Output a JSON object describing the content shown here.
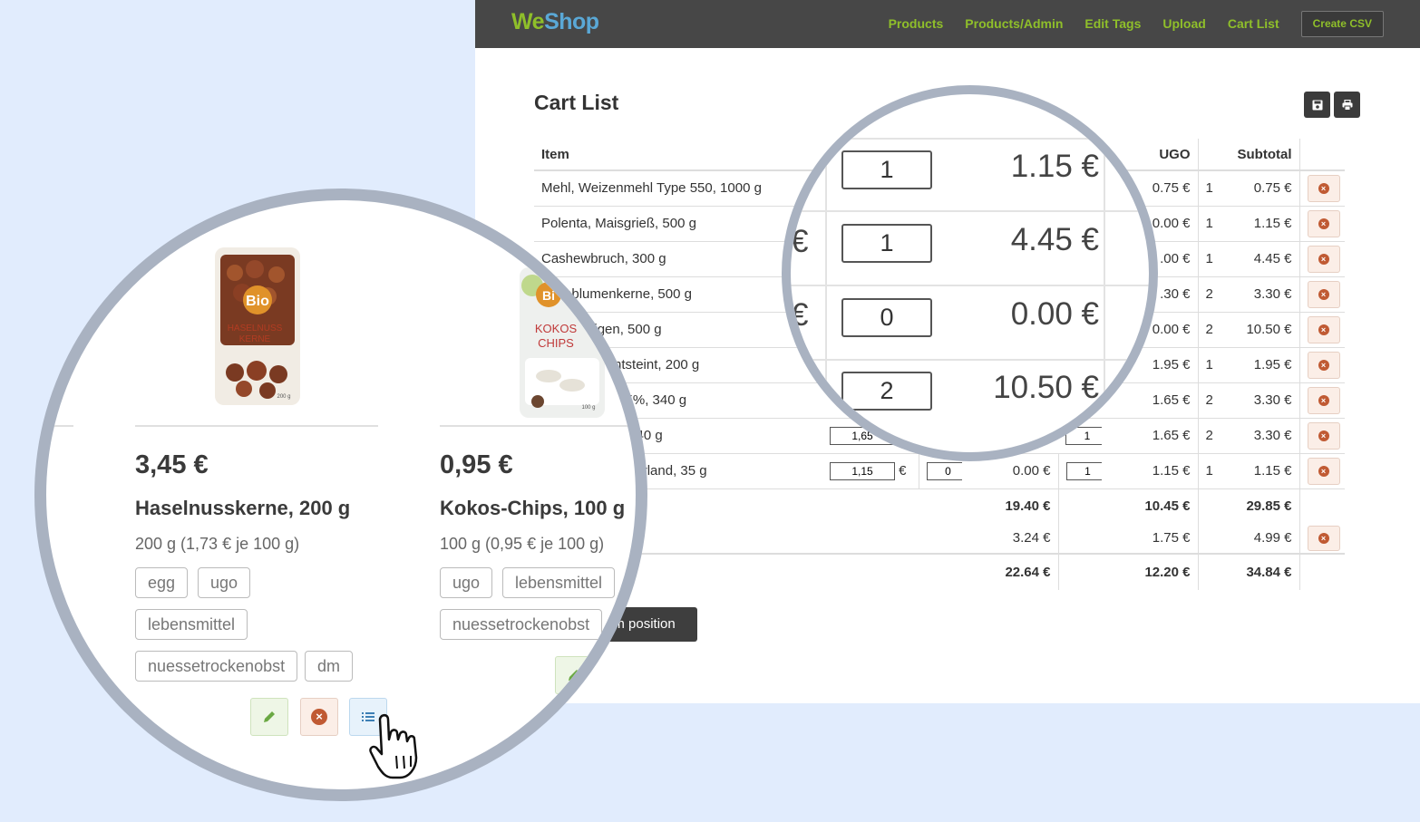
{
  "app": {
    "brand_we": "We",
    "brand_shop": "Shop",
    "nav": [
      "Products",
      "Products/Admin",
      "Edit Tags",
      "Upload",
      "Cart List"
    ],
    "nav_button": "Create CSV",
    "page_title": "Cart List",
    "icons": [
      "save-icon",
      "print-icon"
    ],
    "colors": {
      "navbar": "#474747",
      "nav_link": "#8fbf2a",
      "delete": "#c05a33"
    }
  },
  "cart": {
    "headers": {
      "item": "Item",
      "ugo": "UGO",
      "subtotal": "Subtotal"
    },
    "rows": [
      {
        "item": "Mehl, Weizenmehl Type 550, 1000 g",
        "ugo_price": "0.75 €",
        "ugo_qty": "1",
        "subtotal": "0.75 €"
      },
      {
        "item": "Polenta, Maisgrieß, 500 g",
        "ugo_price": "0.00 €",
        "ugo_qty": "1",
        "subtotal": "1.15 €"
      },
      {
        "item": "Cashewbruch, 300 g",
        "ugo_price": ".00 €",
        "ugo_qty": "1",
        "subtotal": "4.45 €"
      },
      {
        "item": "nnenblumenkerne, 500 g",
        "ugo_price": ".30 €",
        "ugo_qty": "2",
        "subtotal": "3.30 €"
      },
      {
        "item": "nobst Feigen, 500 g",
        "ugo_price": "0.00 €",
        "ugo_qty": "2",
        "subtotal": "10.50 €"
      },
      {
        "item": "st Datteln, entsteint, 200 g",
        "ugo_price": "1.95 €",
        "ugo_qty": "1",
        "subtotal": "1.95 €"
      },
      {
        "item": "ich Himbeer 55%, 340 g",
        "ugo_price": "1.65 €",
        "ugo_qty": "2",
        "subtotal": "3.30 €"
      },
      {
        "item": "h, Waldfrucht, 340 g",
        "price_input": "1,65",
        "ugo_input": "1",
        "ugo_price": "1.65 €",
        "ugo_qty": "2",
        "subtotal": "3.30 €"
      },
      {
        "item": "(20x1,75g), Naturland, 35 g",
        "price_input": "1,15",
        "price_unit": "€",
        "qty_input": "0",
        "line_total": "0.00 €",
        "ugo_input": "1",
        "ugo_price": "1.15 €",
        "ugo_qty": "1",
        "subtotal": "1.15 €"
      }
    ],
    "sum_row": {
      "a": "19.40 €",
      "b": "10.45 €",
      "c": "29.85 €"
    },
    "tax_row": {
      "a": "3.24 €",
      "b": "1.75 €",
      "c": "4.99 €"
    },
    "grand_row": {
      "a": "22.64 €",
      "b": "12.20 €",
      "c": "34.84 €"
    },
    "tooltip": "om position"
  },
  "magnifier_right": {
    "rows": [
      {
        "qty": "1",
        "price": "1.15 €"
      },
      {
        "qty": "1",
        "price": "4.45 €"
      },
      {
        "qty": "0",
        "price": "0.00 €"
      },
      {
        "qty": "2",
        "price": "10.50 €"
      }
    ],
    "euro": "€"
  },
  "magnifier_left": {
    "cards": [
      {
        "price": "3,45 €",
        "name": "Haselnusskerne, 200 g",
        "info": "200 g (1,73 € je 100 g)",
        "tags": [
          "egg",
          "ugo",
          "lebensmittel",
          "nuessetrockenobst",
          "dm"
        ],
        "package": {
          "brand": "Bio",
          "label1": "HASELNUSS",
          "label2": "KERNE",
          "weight": "200 g"
        }
      },
      {
        "price": "0,95 €",
        "name": "Kokos-Chips, 100 g",
        "info": "100 g (0,95 € je 100 g)",
        "tags": [
          "ugo",
          "lebensmittel",
          "nuessetrockenobst"
        ],
        "package": {
          "brand": "Bi",
          "label1": "KOKOS",
          "label2": "CHIPS",
          "weight": "100 g"
        }
      }
    ]
  }
}
